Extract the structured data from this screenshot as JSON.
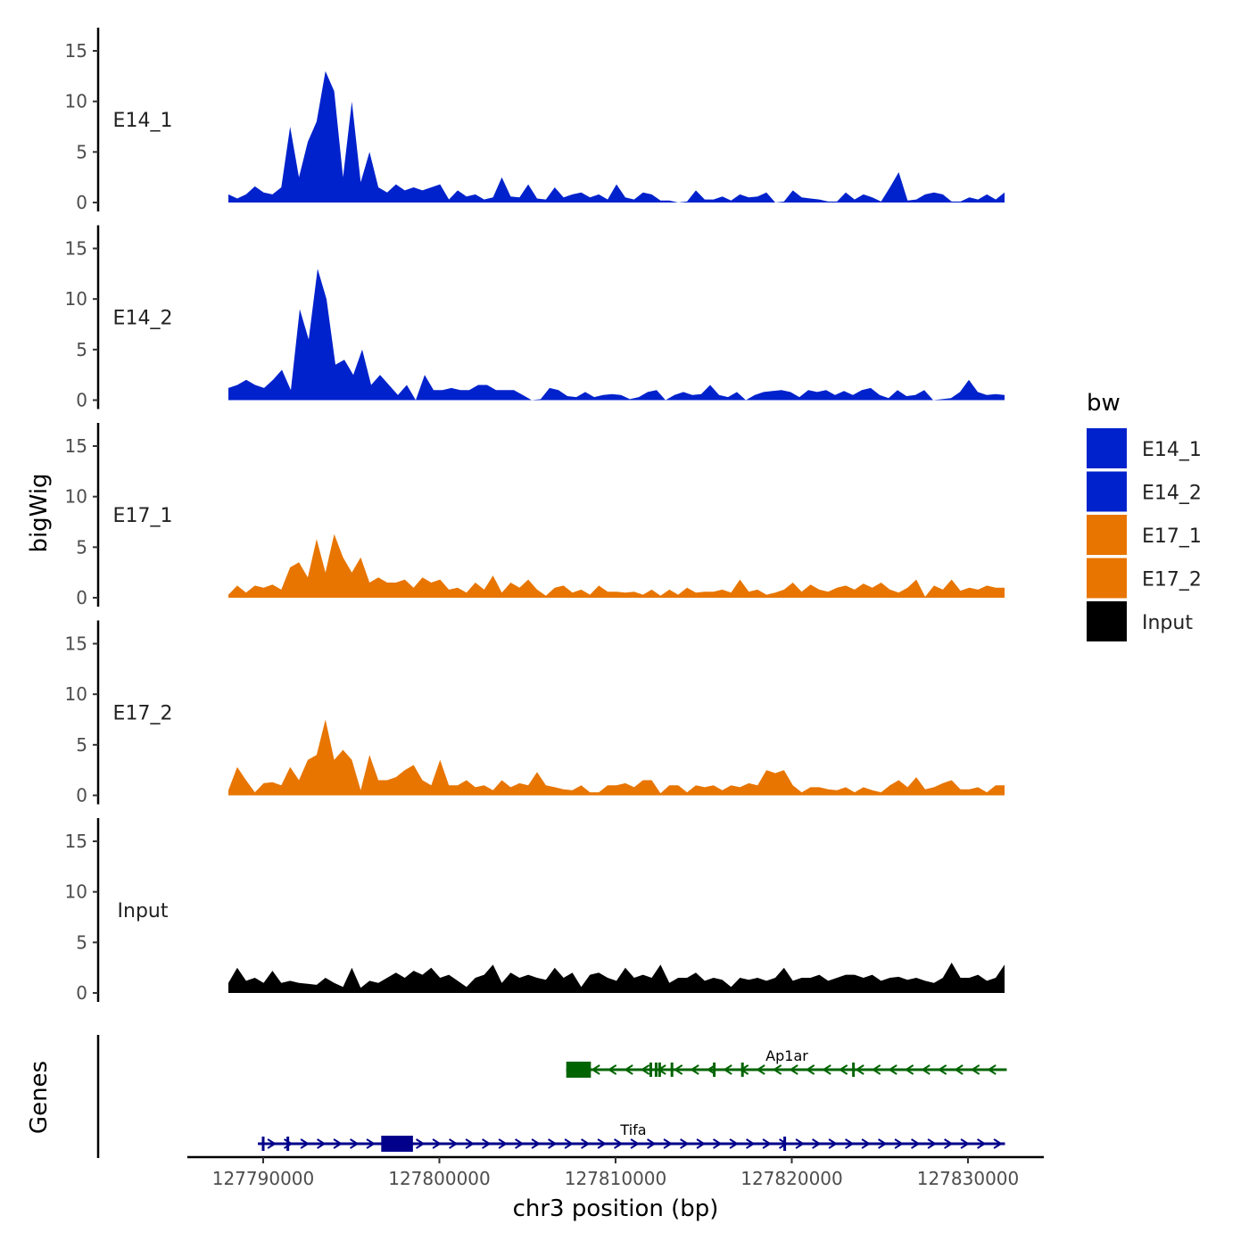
{
  "chart_data": {
    "type": "area",
    "ylabel": "bigWig",
    "xlabel": "chr3 position (bp)",
    "genes_label": "Genes",
    "ylim": [
      0,
      17
    ],
    "yticks": [
      "0",
      "5",
      "10",
      "15"
    ],
    "xticks": [
      127790000,
      127800000,
      127810000,
      127820000,
      127830000
    ],
    "xtick_labels": [
      "127790000",
      "127800000",
      "127810000",
      "127820000",
      "127830000"
    ],
    "x_start": 127788025,
    "x_step": 500,
    "legend": {
      "title": "bw",
      "position": "right",
      "entries": [
        {
          "name": "E14_1",
          "color": "#0022CC"
        },
        {
          "name": "E14_2",
          "color": "#0022CC"
        },
        {
          "name": "E17_1",
          "color": "#E87500"
        },
        {
          "name": "E17_2",
          "color": "#E87500"
        },
        {
          "name": "Input",
          "color": "#000000"
        }
      ]
    },
    "series": [
      {
        "name": "E14_1",
        "color": "#0022CC",
        "values": [
          0.8,
          0.4,
          0.8,
          1.6,
          1.0,
          0.8,
          1.5,
          7.5,
          2.5,
          6,
          8,
          13,
          11,
          2.5,
          10,
          2,
          5,
          1.5,
          1.0,
          1.8,
          1.2,
          1.5,
          1.2,
          1.5,
          1.8,
          0.3,
          1.2,
          0.6,
          0.8,
          0.3,
          0.5,
          2.5,
          0.6,
          0.5,
          1.8,
          0.4,
          0.3,
          1.5,
          0.5,
          0.8,
          1.0,
          0.5,
          0.8,
          0.3,
          1.8,
          0.5,
          0.3,
          1.0,
          0.8,
          0.2,
          0.2,
          0,
          0.1,
          1.2,
          0.3,
          0.3,
          0.6,
          0.2,
          0.8,
          0.5,
          0.6,
          1.0,
          0,
          0.1,
          1.2,
          0.5,
          0.4,
          0.3,
          0.1,
          0.1,
          1.0,
          0.3,
          0.8,
          0.5,
          0.1,
          1.5,
          3.0,
          0.2,
          0.3,
          0.8,
          1.0,
          0.8,
          0.1,
          0.1,
          0.5,
          0.3,
          0.8,
          0.3,
          1.0
        ]
      },
      {
        "name": "E14_2",
        "color": "#0022CC",
        "values": [
          1.2,
          1.5,
          2,
          1.5,
          1.2,
          2,
          3,
          1,
          9,
          6,
          13,
          10,
          3.5,
          4,
          2.5,
          5,
          1.5,
          2.5,
          1.5,
          0.5,
          1.5,
          0,
          2.5,
          1,
          1,
          1.2,
          1,
          1,
          1.5,
          1.5,
          1,
          1,
          1,
          0.5,
          0,
          0.1,
          1.2,
          1,
          0.4,
          0.3,
          0.8,
          0.3,
          0.5,
          0.6,
          0.5,
          0.1,
          0.3,
          0.8,
          1,
          0,
          0.5,
          0.8,
          0.5,
          0.6,
          1.5,
          0.5,
          0.3,
          0.8,
          0,
          0.5,
          0.8,
          0.9,
          1,
          0.8,
          0.3,
          1,
          0.8,
          1,
          0.5,
          0.9,
          0.5,
          1,
          1.2,
          0.5,
          0.2,
          1,
          0.4,
          0.5,
          1,
          0,
          0.1,
          0.2,
          0.8,
          2,
          0.8,
          0.5,
          0.6,
          0.5
        ]
      },
      {
        "name": "E17_1",
        "color": "#E87500",
        "values": [
          0.3,
          1.2,
          0.5,
          1.2,
          1.0,
          1.3,
          0.8,
          3,
          3.5,
          2,
          5.8,
          2.5,
          6.3,
          4,
          2.5,
          4,
          1.5,
          2,
          1.5,
          1.5,
          1.8,
          1.0,
          2,
          1.5,
          1.8,
          0.8,
          1.0,
          0.5,
          1.5,
          0.8,
          2.2,
          0.5,
          1.5,
          1.0,
          1.8,
          0.8,
          0.2,
          1.0,
          1.2,
          0.5,
          0.8,
          0.3,
          1.2,
          0.6,
          0.6,
          0.5,
          0.6,
          0.3,
          0.8,
          0.2,
          0.8,
          0.3,
          1.0,
          0.5,
          0.6,
          0.6,
          0.8,
          0.5,
          1.8,
          0.6,
          0.8,
          0.3,
          0.5,
          0.8,
          1.5,
          0.6,
          1.3,
          0.8,
          0.6,
          1.0,
          1.2,
          0.8,
          1.4,
          1.0,
          1.5,
          0.8,
          0.5,
          1.0,
          1.8,
          0.1,
          1.2,
          0.8,
          1.8,
          0.7,
          1.0,
          0.8,
          1.2,
          1.0,
          1.0
        ]
      },
      {
        "name": "E17_2",
        "color": "#E87500",
        "values": [
          0.5,
          2.8,
          1.5,
          0.3,
          1.2,
          1.3,
          1.0,
          2.8,
          1.5,
          3.5,
          4,
          7.5,
          3.5,
          4.5,
          3.5,
          0.5,
          4,
          1.5,
          1.5,
          1.8,
          2.5,
          3,
          1.5,
          1.0,
          3.5,
          1.0,
          1.0,
          1.5,
          0.8,
          1.0,
          0.5,
          1.5,
          0.8,
          1.2,
          1.0,
          2.3,
          1.0,
          0.8,
          0.6,
          0.5,
          1.0,
          0.3,
          0.3,
          1.0,
          1.0,
          1.2,
          0.8,
          1.5,
          1.5,
          0.2,
          1.0,
          1.0,
          0.3,
          1.0,
          0.8,
          1.0,
          0.5,
          1.0,
          0.8,
          1.2,
          1.0,
          2.5,
          2.2,
          2.5,
          1.0,
          0.3,
          0.8,
          0.8,
          0.6,
          0.5,
          0.8,
          0.3,
          0.8,
          0.5,
          0.3,
          1.0,
          1.5,
          0.8,
          1.8,
          0.6,
          0.8,
          1.2,
          1.5,
          0.6,
          0.6,
          0.8,
          0.3,
          1.0,
          1.0
        ]
      },
      {
        "name": "Input",
        "color": "#000000",
        "values": [
          1.0,
          2.5,
          1.2,
          1.5,
          1.0,
          2.2,
          1.0,
          1.2,
          1.0,
          0.9,
          0.8,
          1.5,
          1.0,
          0.6,
          2.5,
          0.5,
          1.2,
          1.0,
          1.5,
          2.0,
          1.5,
          2.2,
          1.8,
          2.5,
          1.5,
          1.8,
          1.2,
          0.6,
          1.5,
          1.8,
          2.8,
          1.0,
          2.0,
          1.5,
          1.8,
          1.5,
          1.3,
          2.5,
          1.5,
          2.0,
          0.6,
          1.8,
          2.0,
          1.5,
          1.2,
          2.5,
          1.5,
          1.8,
          1.5,
          2.8,
          1.0,
          1.5,
          1.5,
          2.0,
          1.2,
          1.5,
          1.3,
          0.6,
          1.5,
          1.3,
          1.5,
          1.2,
          1.5,
          2.5,
          1.2,
          1.5,
          1.5,
          1.8,
          1.2,
          1.5,
          1.8,
          1.8,
          1.5,
          1.8,
          1.2,
          1.5,
          1.6,
          1.3,
          1.5,
          1.2,
          1.0,
          1.5,
          3.0,
          1.5,
          1.5,
          1.8,
          1.2,
          1.5,
          2.8
        ]
      }
    ],
    "genes": [
      {
        "name": "Ap1ar",
        "color": "#006400",
        "strand": "-",
        "start": 127807200,
        "end": 127832200,
        "thick": [
          127807200,
          127808600
        ],
        "exons": [
          127812000,
          127812300,
          127812500,
          127813200,
          127815600,
          127817200,
          127823500
        ]
      },
      {
        "name": "Tifa",
        "color": "#00008B",
        "strand": "+",
        "start": 127789700,
        "end": 127832100,
        "thick": [
          127796700,
          127798500
        ],
        "exons": [
          127790000,
          127791400,
          127819600
        ]
      }
    ]
  }
}
